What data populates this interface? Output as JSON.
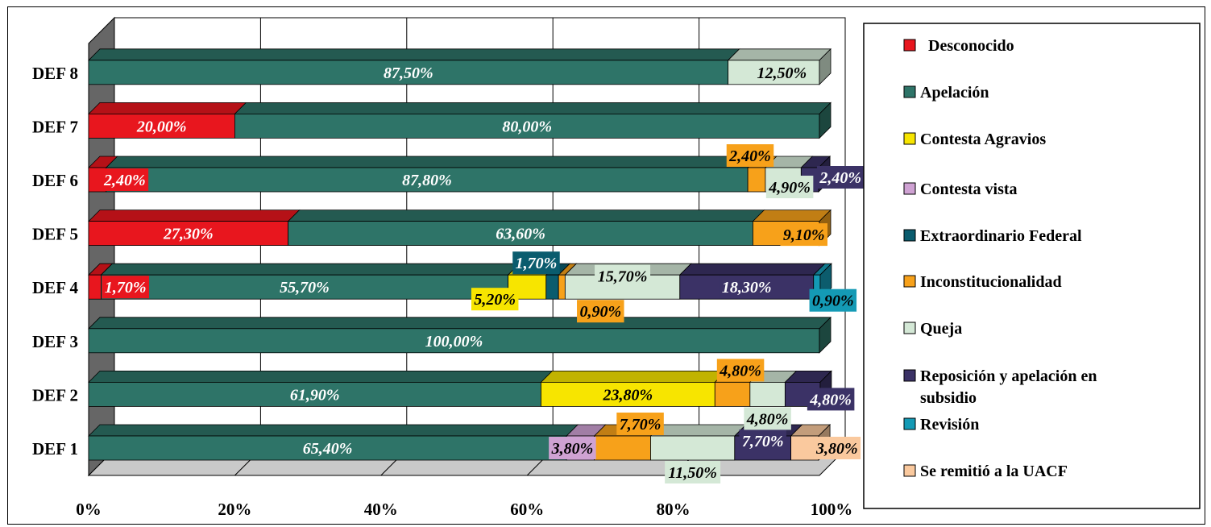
{
  "chart_data": {
    "type": "bar",
    "orientation": "horizontal",
    "stacked": "percent",
    "style": "3d",
    "categories": [
      "DEF 1",
      "DEF 2",
      "DEF 3",
      "DEF 4",
      "DEF 5",
      "DEF 6",
      "DEF 7",
      "DEF 8"
    ],
    "x_ticks": [
      "0%",
      "20%",
      "40%",
      "60%",
      "80%",
      "100%"
    ],
    "xlim": [
      0,
      100
    ],
    "grid": true,
    "legend_position": "right",
    "series": [
      {
        "name": "Desconocido",
        "color": "#E8161E",
        "label_color": "#ffffff",
        "values": [
          0,
          0,
          0,
          1.7,
          27.3,
          2.4,
          20.0,
          0
        ]
      },
      {
        "name": "Apelación",
        "color": "#2E7468",
        "label_color": "#ffffff",
        "values": [
          65.4,
          61.9,
          100.0,
          55.7,
          63.6,
          87.8,
          80.0,
          87.5
        ]
      },
      {
        "name": "Contesta Agravios",
        "color": "#F7E500",
        "label_color": "#000000",
        "values": [
          0,
          23.8,
          0,
          5.2,
          0,
          0,
          0,
          0
        ]
      },
      {
        "name": "Contesta vista",
        "color": "#CFA2D3",
        "label_color": "#000000",
        "values": [
          3.8,
          0,
          0,
          0,
          0,
          0,
          0,
          0
        ]
      },
      {
        "name": "Extraordinario Federal",
        "color": "#0A5C6E",
        "label_color": "#ffffff",
        "values": [
          0,
          0,
          0,
          1.7,
          0,
          0,
          0,
          0
        ]
      },
      {
        "name": "Inconstitucionalidad",
        "color": "#F7A11A",
        "label_color": "#000000",
        "values": [
          7.7,
          4.8,
          0,
          0.9,
          9.1,
          2.4,
          0,
          0
        ]
      },
      {
        "name": "Queja",
        "color": "#D4E8D6",
        "label_color": "#000000",
        "values": [
          11.5,
          4.8,
          0,
          15.7,
          0,
          4.9,
          0,
          12.5
        ]
      },
      {
        "name": "Reposición y apelación en subsidio",
        "color": "#3B3266",
        "label_color": "#ffffff",
        "values": [
          7.7,
          4.8,
          0,
          18.3,
          0,
          2.4,
          0,
          0
        ]
      },
      {
        "name": "Revisión",
        "color": "#149AB5",
        "label_color": "#000000",
        "values": [
          0,
          0,
          0,
          0.9,
          0,
          0,
          0,
          0
        ]
      },
      {
        "name": "Se remitió a la UACF",
        "color": "#FAC99E",
        "label_color": "#000000",
        "values": [
          3.8,
          0,
          0,
          0,
          0,
          0,
          0,
          0
        ]
      }
    ],
    "data_labels": [
      {
        "category": "DEF 1",
        "series": "Apelación",
        "text": "65,40%"
      },
      {
        "category": "DEF 1",
        "series": "Contesta vista",
        "text": "3,80%"
      },
      {
        "category": "DEF 1",
        "series": "Inconstitucionalidad",
        "text": "7,70%"
      },
      {
        "category": "DEF 1",
        "series": "Queja",
        "text": "11,50%"
      },
      {
        "category": "DEF 1",
        "series": "Reposición y apelación en subsidio",
        "text": "7,70%"
      },
      {
        "category": "DEF 1",
        "series": "Se remitió a la UACF",
        "text": "3,80%"
      },
      {
        "category": "DEF 2",
        "series": "Apelación",
        "text": "61,90%"
      },
      {
        "category": "DEF 2",
        "series": "Contesta Agravios",
        "text": "23,80%"
      },
      {
        "category": "DEF 2",
        "series": "Inconstitucionalidad",
        "text": "4,80%"
      },
      {
        "category": "DEF 2",
        "series": "Queja",
        "text": "4,80%"
      },
      {
        "category": "DEF 2",
        "series": "Reposición y apelación en subsidio",
        "text": "4,80%"
      },
      {
        "category": "DEF 3",
        "series": "Apelación",
        "text": "100,00%"
      },
      {
        "category": "DEF 4",
        "series": "Desconocido",
        "text": "1,70%"
      },
      {
        "category": "DEF 4",
        "series": "Apelación",
        "text": "55,70%"
      },
      {
        "category": "DEF 4",
        "series": "Contesta Agravios",
        "text": "5,20%"
      },
      {
        "category": "DEF 4",
        "series": "Extraordinario Federal",
        "text": "1,70%"
      },
      {
        "category": "DEF 4",
        "series": "Inconstitucionalidad",
        "text": "0,90%"
      },
      {
        "category": "DEF 4",
        "series": "Queja",
        "text": "15,70%"
      },
      {
        "category": "DEF 4",
        "series": "Reposición y apelación en subsidio",
        "text": "18,30%"
      },
      {
        "category": "DEF 4",
        "series": "Revisión",
        "text": "0,90%"
      },
      {
        "category": "DEF 5",
        "series": "Desconocido",
        "text": "27,30%"
      },
      {
        "category": "DEF 5",
        "series": "Apelación",
        "text": "63,60%"
      },
      {
        "category": "DEF 5",
        "series": "Inconstitucionalidad",
        "text": "9,10%"
      },
      {
        "category": "DEF 6",
        "series": "Desconocido",
        "text": "2,40%"
      },
      {
        "category": "DEF 6",
        "series": "Apelación",
        "text": "87,80%"
      },
      {
        "category": "DEF 6",
        "series": "Inconstitucionalidad",
        "text": "2,40%"
      },
      {
        "category": "DEF 6",
        "series": "Queja",
        "text": "4,90%"
      },
      {
        "category": "DEF 6",
        "series": "Reposición y apelación en subsidio",
        "text": "2,40%"
      },
      {
        "category": "DEF 7",
        "series": "Desconocido",
        "text": "20,00%"
      },
      {
        "category": "DEF 7",
        "series": "Apelación",
        "text": "80,00%"
      },
      {
        "category": "DEF 8",
        "series": "Apelación",
        "text": "87,50%"
      },
      {
        "category": "DEF 8",
        "series": "Queja",
        "text": "12,50%"
      }
    ]
  }
}
